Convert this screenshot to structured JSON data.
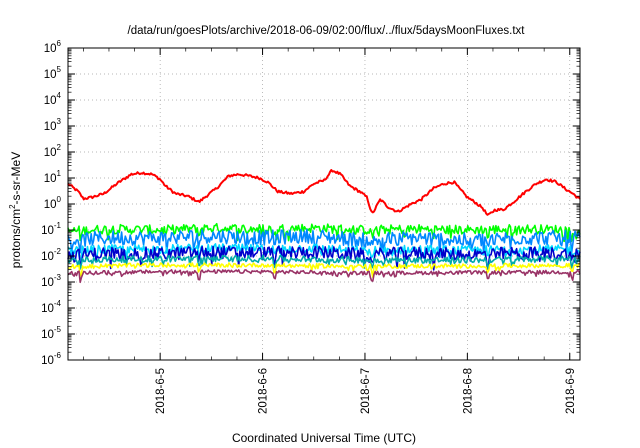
{
  "chart_data": {
    "type": "line",
    "title": "/data/run/goesPlots/archive/2018-06-09/02:00/flux/../flux/5daysMoonFluxes.txt",
    "xlabel": "Coordinated Universal Time (UTC)",
    "ylabel": "protons/cm²-s-sr-MeV",
    "ylabel_parts": {
      "prefix": "protons/cm",
      "sup": "2",
      "suffix": "-s-sr-MeV"
    },
    "y_scale": "log",
    "ylim": [
      1e-06,
      1000000.0
    ],
    "x_range_days": [
      4.1,
      9.1
    ],
    "y_ticks": [
      {
        "base": "10",
        "exp": "-6",
        "value": 1e-06
      },
      {
        "base": "10",
        "exp": "-5",
        "value": 1e-05
      },
      {
        "base": "10",
        "exp": "-4",
        "value": 0.0001
      },
      {
        "base": "10",
        "exp": "-3",
        "value": 0.001
      },
      {
        "base": "10",
        "exp": "-2",
        "value": 0.01
      },
      {
        "base": "10",
        "exp": "-1",
        "value": 0.1
      },
      {
        "base": "10",
        "exp": "0",
        "value": 1
      },
      {
        "base": "10",
        "exp": "1",
        "value": 10
      },
      {
        "base": "10",
        "exp": "2",
        "value": 100
      },
      {
        "base": "10",
        "exp": "3",
        "value": 1000
      },
      {
        "base": "10",
        "exp": "4",
        "value": 10000
      },
      {
        "base": "10",
        "exp": "5",
        "value": 100000
      },
      {
        "base": "10",
        "exp": "6",
        "value": 1000000
      }
    ],
    "x_ticks": [
      {
        "label": "2018-6-5",
        "day": 5
      },
      {
        "label": "2018-6-6",
        "day": 6
      },
      {
        "label": "2018-6-7",
        "day": 7
      },
      {
        "label": "2018-6-8",
        "day": 8
      },
      {
        "label": "2018-6-9",
        "day": 9
      }
    ],
    "grid": true,
    "legend": "none",
    "series": [
      {
        "color": "#ff0000",
        "noise": 0.05,
        "points": [
          [
            4.1,
            6
          ],
          [
            4.2,
            3
          ],
          [
            4.25,
            1.6
          ],
          [
            4.33,
            1.8
          ],
          [
            4.45,
            2.5
          ],
          [
            4.6,
            7
          ],
          [
            4.72,
            14
          ],
          [
            4.82,
            16
          ],
          [
            4.92,
            14
          ],
          [
            5.0,
            9
          ],
          [
            5.05,
            5
          ],
          [
            5.15,
            2.5
          ],
          [
            5.27,
            2.0
          ],
          [
            5.38,
            1.2
          ],
          [
            5.45,
            2.0
          ],
          [
            5.55,
            4
          ],
          [
            5.67,
            12
          ],
          [
            5.77,
            14
          ],
          [
            5.87,
            12
          ],
          [
            5.97,
            10
          ],
          [
            6.05,
            7
          ],
          [
            6.15,
            3
          ],
          [
            6.28,
            2.5
          ],
          [
            6.4,
            3
          ],
          [
            6.5,
            6
          ],
          [
            6.6,
            8
          ],
          [
            6.68,
            20
          ],
          [
            6.76,
            14
          ],
          [
            6.85,
            5
          ],
          [
            6.95,
            3
          ],
          [
            7.02,
            1.8
          ],
          [
            7.07,
            0.4
          ],
          [
            7.15,
            1.5
          ],
          [
            7.22,
            0.8
          ],
          [
            7.32,
            0.5
          ],
          [
            7.45,
            1.0
          ],
          [
            7.55,
            1.5
          ],
          [
            7.67,
            4
          ],
          [
            7.77,
            6
          ],
          [
            7.87,
            7
          ],
          [
            7.92,
            4
          ],
          [
            8.0,
            1.8
          ],
          [
            8.07,
            1.2
          ],
          [
            8.15,
            0.7
          ],
          [
            8.2,
            0.35
          ],
          [
            8.27,
            0.6
          ],
          [
            8.35,
            0.6
          ],
          [
            8.45,
            1.2
          ],
          [
            8.57,
            3
          ],
          [
            8.67,
            6
          ],
          [
            8.77,
            9
          ],
          [
            8.87,
            7
          ],
          [
            8.95,
            4
          ],
          [
            9.03,
            2.5
          ],
          [
            9.1,
            1.5
          ]
        ]
      },
      {
        "color": "#00ff00",
        "noise": 0.18,
        "points": [
          [
            4.1,
            0.09
          ],
          [
            4.5,
            0.11
          ],
          [
            5.0,
            0.1
          ],
          [
            5.5,
            0.12
          ],
          [
            6.0,
            0.11
          ],
          [
            6.5,
            0.12
          ],
          [
            7.0,
            0.1
          ],
          [
            7.5,
            0.11
          ],
          [
            8.0,
            0.1
          ],
          [
            8.5,
            0.11
          ],
          [
            9.1,
            0.1
          ]
        ]
      },
      {
        "color": "#0088ff",
        "noise": 0.28,
        "points": [
          [
            4.1,
            0.04
          ],
          [
            4.5,
            0.05
          ],
          [
            5.0,
            0.05
          ],
          [
            5.5,
            0.06
          ],
          [
            6.0,
            0.05
          ],
          [
            6.5,
            0.06
          ],
          [
            7.0,
            0.04
          ],
          [
            7.5,
            0.05
          ],
          [
            8.0,
            0.04
          ],
          [
            8.5,
            0.05
          ],
          [
            9.1,
            0.05
          ]
        ]
      },
      {
        "color": "#00d8ff",
        "noise": 0.18,
        "points": [
          [
            4.1,
            0.015
          ],
          [
            4.5,
            0.018
          ],
          [
            5.0,
            0.018
          ],
          [
            5.5,
            0.02
          ],
          [
            6.0,
            0.018
          ],
          [
            6.5,
            0.02
          ],
          [
            7.0,
            0.015
          ],
          [
            7.5,
            0.018
          ],
          [
            8.0,
            0.016
          ],
          [
            8.5,
            0.018
          ],
          [
            9.1,
            0.017
          ]
        ]
      },
      {
        "color": "#0000cc",
        "noise": 0.25,
        "points": [
          [
            4.1,
            0.01
          ],
          [
            4.5,
            0.013
          ],
          [
            5.0,
            0.012
          ],
          [
            5.5,
            0.014
          ],
          [
            6.0,
            0.013
          ],
          [
            6.5,
            0.014
          ],
          [
            7.0,
            0.011
          ],
          [
            7.5,
            0.013
          ],
          [
            8.0,
            0.011
          ],
          [
            8.5,
            0.013
          ],
          [
            9.1,
            0.012
          ]
        ]
      },
      {
        "color": "#00aaaa",
        "noise": 0.12,
        "points": [
          [
            4.1,
            0.007
          ],
          [
            5.0,
            0.008
          ],
          [
            6.0,
            0.008
          ],
          [
            7.0,
            0.007
          ],
          [
            8.0,
            0.007
          ],
          [
            9.1,
            0.008
          ]
        ]
      },
      {
        "color": "#ffff00",
        "noise": 0.08,
        "points": [
          [
            4.1,
            0.004
          ],
          [
            5.0,
            0.0045
          ],
          [
            6.0,
            0.0045
          ],
          [
            7.0,
            0.004
          ],
          [
            8.0,
            0.0042
          ],
          [
            9.1,
            0.0043
          ]
        ]
      },
      {
        "color": "#993366",
        "noise": 0.07,
        "points": [
          [
            4.1,
            0.0022
          ],
          [
            5.0,
            0.0025
          ],
          [
            6.0,
            0.0025
          ],
          [
            7.0,
            0.0022
          ],
          [
            8.0,
            0.0023
          ],
          [
            9.1,
            0.0024
          ]
        ]
      }
    ]
  }
}
